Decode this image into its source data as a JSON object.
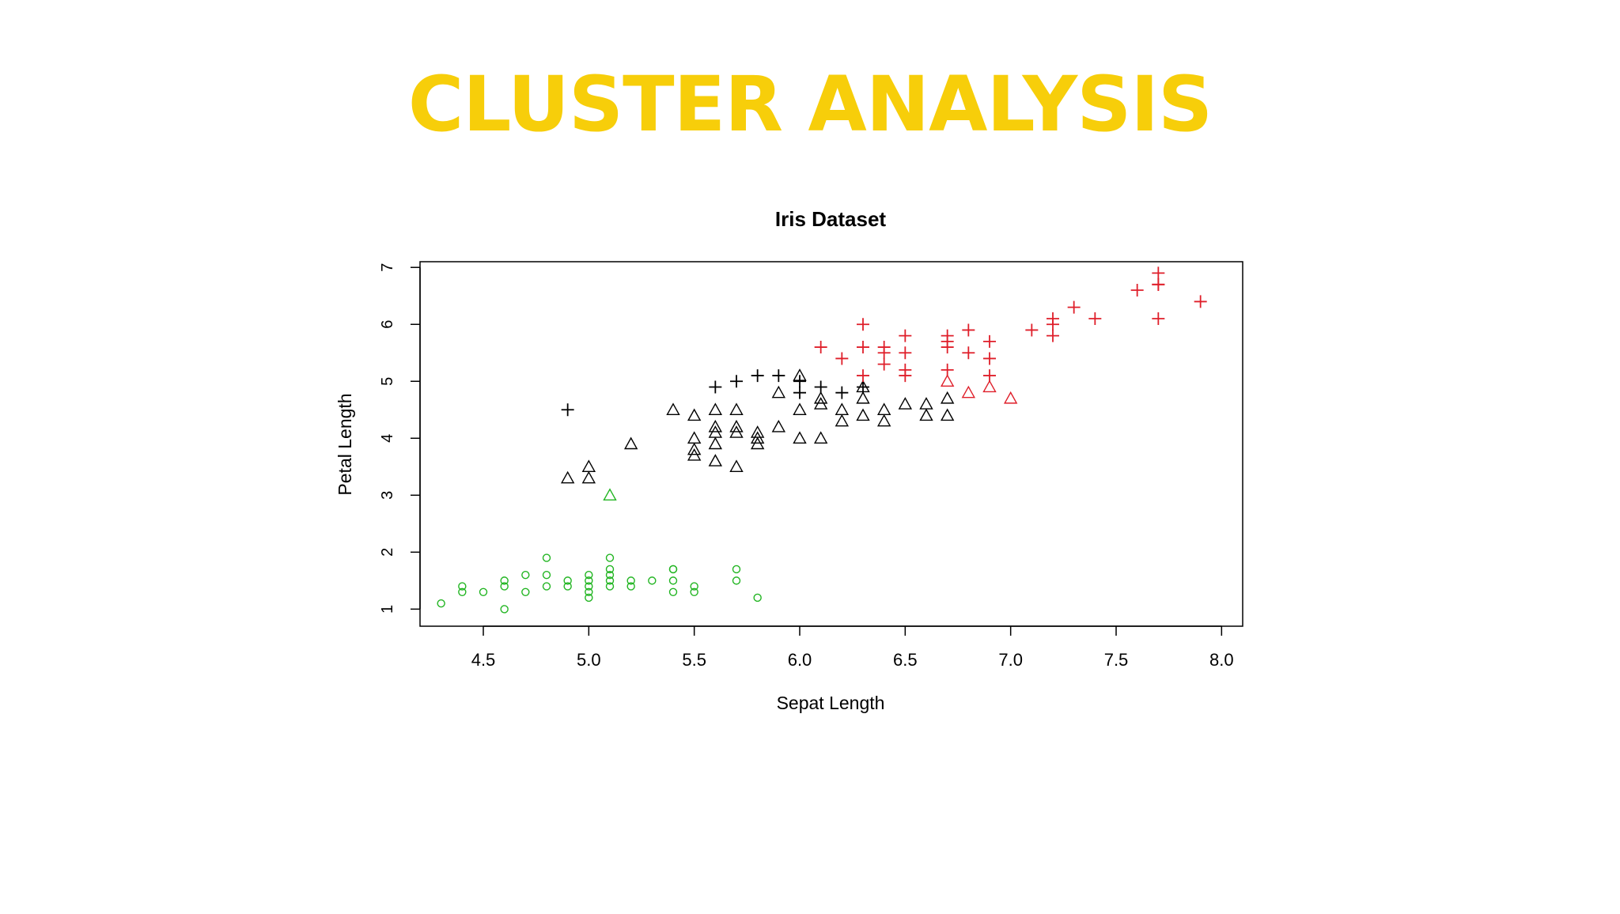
{
  "headline": "CLUSTER ANALYSIS",
  "colors": {
    "headline": "#F7CE0A",
    "cluster_green": "#22B522",
    "cluster_black": "#000000",
    "cluster_red": "#DF1F2A",
    "axis": "#000000"
  },
  "chart_data": {
    "type": "scatter",
    "title": "Iris Dataset",
    "xlabel": "Sepat Length",
    "ylabel": "Petal Length",
    "xlim": [
      4.2,
      8.1
    ],
    "ylim": [
      0.7,
      7.1
    ],
    "xticks": [
      4.5,
      5.0,
      5.5,
      6.0,
      6.5,
      7.0,
      7.5,
      8.0
    ],
    "xtick_labels": [
      "4.5",
      "5.0",
      "5.5",
      "6.0",
      "6.5",
      "7.0",
      "7.5",
      "8.0"
    ],
    "yticks": [
      1,
      2,
      3,
      4,
      5,
      6,
      7
    ],
    "ytick_labels": [
      "1",
      "2",
      "3",
      "4",
      "5",
      "6",
      "7"
    ],
    "grid": false,
    "marker_note": "color = cluster assignment, marker shape = species",
    "series": [
      {
        "color": "green",
        "marker": "circle",
        "x": [
          4.3,
          4.4,
          4.4,
          4.5,
          4.6,
          4.6,
          4.6,
          4.7,
          4.7,
          4.8,
          4.8,
          4.8,
          4.9,
          4.9,
          5.0,
          5.0,
          5.0,
          5.0,
          5.0,
          5.1,
          5.1,
          5.1,
          5.1,
          5.1,
          5.2,
          5.2,
          5.3,
          5.4,
          5.4,
          5.4,
          5.4,
          5.5,
          5.5,
          5.7,
          5.7,
          5.8
        ],
        "y": [
          1.1,
          1.3,
          1.4,
          1.3,
          1.0,
          1.4,
          1.5,
          1.3,
          1.6,
          1.4,
          1.6,
          1.9,
          1.4,
          1.5,
          1.2,
          1.3,
          1.4,
          1.5,
          1.6,
          1.4,
          1.5,
          1.6,
          1.7,
          1.9,
          1.4,
          1.5,
          1.5,
          1.3,
          1.5,
          1.7,
          1.7,
          1.3,
          1.4,
          1.5,
          1.7,
          1.2
        ]
      },
      {
        "color": "green",
        "marker": "triangle",
        "x": [
          5.1
        ],
        "y": [
          3.0
        ]
      },
      {
        "color": "black",
        "marker": "triangle",
        "x": [
          4.9,
          5.0,
          5.0,
          5.2,
          5.4,
          5.5,
          5.5,
          5.5,
          5.5,
          5.6,
          5.6,
          5.6,
          5.6,
          5.6,
          5.7,
          5.7,
          5.7,
          5.7,
          5.8,
          5.8,
          5.8,
          5.9,
          5.9,
          6.0,
          6.0,
          6.0,
          6.1,
          6.1,
          6.1,
          6.2,
          6.2,
          6.3,
          6.3,
          6.3,
          6.4,
          6.4,
          6.5,
          6.6,
          6.6,
          6.7,
          6.7
        ],
        "y": [
          3.3,
          3.3,
          3.5,
          3.9,
          4.5,
          3.7,
          3.8,
          4.0,
          4.4,
          3.6,
          3.9,
          4.1,
          4.2,
          4.5,
          3.5,
          4.1,
          4.2,
          4.5,
          3.9,
          4.0,
          4.1,
          4.2,
          4.8,
          4.0,
          4.5,
          5.1,
          4.0,
          4.6,
          4.7,
          4.3,
          4.5,
          4.4,
          4.7,
          4.9,
          4.3,
          4.5,
          4.6,
          4.4,
          4.6,
          4.4,
          4.7
        ]
      },
      {
        "color": "black",
        "marker": "plus",
        "x": [
          4.9,
          5.6,
          5.7,
          5.8,
          5.9,
          6.0,
          6.0,
          6.1,
          6.2,
          6.3
        ],
        "y": [
          4.5,
          4.9,
          5.0,
          5.1,
          5.1,
          4.8,
          5.0,
          4.9,
          4.8,
          4.9
        ]
      },
      {
        "color": "red",
        "marker": "triangle",
        "x": [
          6.7,
          6.8,
          6.9,
          7.0
        ],
        "y": [
          5.0,
          4.8,
          4.9,
          4.7
        ]
      },
      {
        "color": "red",
        "marker": "plus",
        "x": [
          6.1,
          6.2,
          6.3,
          6.3,
          6.3,
          6.4,
          6.4,
          6.4,
          6.5,
          6.5,
          6.5,
          6.5,
          6.7,
          6.7,
          6.7,
          6.7,
          6.8,
          6.8,
          6.9,
          6.9,
          6.9,
          7.1,
          7.2,
          7.2,
          7.2,
          7.3,
          7.4,
          7.6,
          7.7,
          7.7,
          7.7,
          7.7,
          7.9
        ],
        "y": [
          5.6,
          5.4,
          5.1,
          5.6,
          6.0,
          5.3,
          5.5,
          5.6,
          5.1,
          5.2,
          5.5,
          5.8,
          5.2,
          5.6,
          5.7,
          5.8,
          5.5,
          5.9,
          5.1,
          5.4,
          5.7,
          5.9,
          5.8,
          6.0,
          6.1,
          6.3,
          6.1,
          6.6,
          6.1,
          6.7,
          6.7,
          6.9,
          6.4
        ]
      }
    ]
  }
}
